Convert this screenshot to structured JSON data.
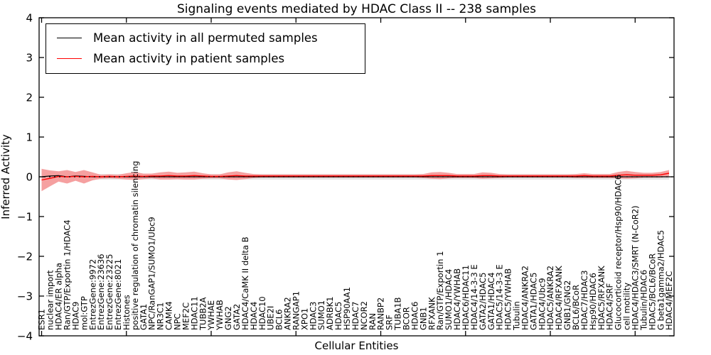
{
  "figure": {
    "title": "Signaling events mediated by HDAC Class II -- 238 samples",
    "xlabel": "Cellular Entities",
    "ylabel": "Inferred Activity"
  },
  "legend": {
    "position": "upper-left",
    "items": [
      {
        "label": "Mean activity in all permuted samples",
        "color": "#000000"
      },
      {
        "label": "Mean activity in patient samples",
        "color": "#ff0000"
      }
    ]
  },
  "colors": {
    "patient_line": "#ff0000",
    "patient_band": "#f5a0a0",
    "permuted_line": "#000000",
    "permuted_band": "#e3e3e3",
    "axis": "#000000",
    "background": "#ffffff"
  },
  "chart_data": {
    "type": "line",
    "title": "Signaling events mediated by HDAC Class II -- 238 samples",
    "xlabel": "Cellular Entities",
    "ylabel": "Inferred Activity",
    "ylim": [
      -4,
      4
    ],
    "yticks": [
      4,
      3,
      2,
      1,
      0,
      -1,
      -2,
      -3,
      -4
    ],
    "x_major_tick_every": 10,
    "grid": false,
    "zero_line": "dotted-black",
    "legend_position": "upper-left",
    "categories": [
      "ESR1",
      "nuclear import",
      "HDAC4/ER alpha",
      "Ran/GTP/Exportin 1/HDAC4",
      "HDAC9",
      "mol:GTP",
      "EntrezGene:9972",
      "EntrezGene:23636",
      "EntrezGene:23225",
      "EntrezGene:8021",
      "Histones",
      "positive regulation of chromatin silencing",
      "GATA1",
      "NPC/RanGAP1/SUMO1/Ubc9",
      "NR3C1",
      "CAMK4",
      "NPC",
      "MEF2C",
      "HDAC11",
      "TUBB2A",
      "YWHAE",
      "YWHAB",
      "GNG2",
      "GATA2",
      "HDAC4/CaMK II delta B",
      "HDAC4",
      "HDAC10",
      "UBE2I",
      "BCL6",
      "ANKRA2",
      "RANGAP1",
      "XPO1",
      "HDAC3",
      "SUMO1",
      "ADRBK1",
      "HDAC5",
      "HSP90AA1",
      "HDAC7",
      "NCOR2",
      "RAN",
      "RANBP2",
      "SRF",
      "TUBA1B",
      "BCOR",
      "HDAC6",
      "GNB1",
      "RFXANK",
      "Ran/GTP/Exportin 1",
      "SUMO1/HDAC4",
      "HDAC4/YWHAB",
      "HDAC6/HDAC11",
      "HDAC4/14-3-3 E",
      "GATA2/HDAC5",
      "GATA1/HDAC4",
      "HDAC5/14-3-3 E",
      "HDAC5/YWHAB",
      "Tubulin",
      "HDAC4/ANKRA2",
      "GATA1/HDAC5",
      "HDAC4/Ubc9",
      "HDAC5/ANKRA2",
      "HDAC4/RFXANK",
      "GNB1/GNG2",
      "BCL6/BCoR",
      "HDAC7/HDAC3",
      "Hsp90/HDAC6",
      "HDAC5/RFXANK",
      "HDAC4/SRF",
      "Glucocorticoid receptor/Hsp90/HDAC6",
      "cell motility",
      "HDAC4/HDAC3/SMRT (N-CoR2)",
      "Tubulin/HDAC6",
      "HDAC5/BCL6/BCoR",
      "G beta1gamma2/HDAC5",
      "HDAC4/MEF2C"
    ],
    "series": [
      {
        "name": "Mean activity in all permuted samples",
        "color": "#000000",
        "band_color": "#e3e3e3",
        "values": [
          0.0,
          0.02,
          0.03,
          0.0,
          0.02,
          0.01,
          0.0,
          0.0,
          0.0,
          0.0,
          0.0,
          0.0,
          0.0,
          0.0,
          0.0,
          0.0,
          0.0,
          0.0,
          0.0,
          0.0,
          0.0,
          0.0,
          0.0,
          0.0,
          0.0,
          0.0,
          0.0,
          0.0,
          0.0,
          0.0,
          0.0,
          0.0,
          0.0,
          0.0,
          0.0,
          0.0,
          0.0,
          0.0,
          0.0,
          0.0,
          0.0,
          0.0,
          0.0,
          0.0,
          0.0,
          0.0,
          0.0,
          0.0,
          0.0,
          0.0,
          0.0,
          0.0,
          0.0,
          0.0,
          0.0,
          0.0,
          0.0,
          0.0,
          0.0,
          0.0,
          0.0,
          0.0,
          0.0,
          0.0,
          0.0,
          0.0,
          0.0,
          0.0,
          0.0,
          0.0,
          0.0,
          0.0,
          0.0,
          0.0,
          0.0
        ],
        "band_half": [
          0.12,
          0.11,
          0.1,
          0.09,
          0.08,
          0.07,
          0.07,
          0.07,
          0.07,
          0.07,
          0.07,
          0.07,
          0.07,
          0.07,
          0.07,
          0.07,
          0.07,
          0.07,
          0.07,
          0.07,
          0.07,
          0.07,
          0.07,
          0.07,
          0.07,
          0.07,
          0.07,
          0.07,
          0.07,
          0.07,
          0.07,
          0.07,
          0.07,
          0.07,
          0.07,
          0.07,
          0.07,
          0.07,
          0.07,
          0.07,
          0.07,
          0.07,
          0.07,
          0.07,
          0.07,
          0.07,
          0.07,
          0.07,
          0.07,
          0.07,
          0.07,
          0.07,
          0.07,
          0.07,
          0.07,
          0.07,
          0.07,
          0.07,
          0.07,
          0.07,
          0.07,
          0.07,
          0.07,
          0.07,
          0.07,
          0.07,
          0.07,
          0.07,
          0.07,
          0.07,
          0.07,
          0.07,
          0.07,
          0.07,
          0.07
        ]
      },
      {
        "name": "Mean activity in patient samples",
        "color": "#ff0000",
        "band_color": "#f5a0a0",
        "values": [
          -0.08,
          -0.04,
          0.01,
          0.0,
          0.01,
          0.0,
          0.01,
          0.0,
          0.01,
          0.0,
          0.01,
          0.02,
          0.01,
          0.02,
          0.02,
          0.03,
          0.02,
          0.02,
          0.03,
          0.02,
          0.01,
          0.01,
          0.02,
          0.03,
          0.02,
          0.02,
          0.02,
          0.02,
          0.02,
          0.02,
          0.02,
          0.02,
          0.02,
          0.02,
          0.02,
          0.02,
          0.02,
          0.02,
          0.02,
          0.02,
          0.02,
          0.02,
          0.02,
          0.02,
          0.02,
          0.02,
          0.03,
          0.03,
          0.03,
          0.02,
          0.02,
          0.02,
          0.03,
          0.03,
          0.02,
          0.02,
          0.02,
          0.02,
          0.02,
          0.02,
          0.02,
          0.02,
          0.02,
          0.02,
          0.03,
          0.02,
          0.02,
          0.02,
          0.04,
          0.05,
          0.04,
          0.04,
          0.04,
          0.05,
          0.09
        ],
        "band_half": [
          0.28,
          0.2,
          0.13,
          0.17,
          0.11,
          0.17,
          0.1,
          0.05,
          0.05,
          0.05,
          0.08,
          0.1,
          0.07,
          0.06,
          0.09,
          0.1,
          0.08,
          0.09,
          0.1,
          0.07,
          0.05,
          0.05,
          0.09,
          0.11,
          0.08,
          0.05,
          0.04,
          0.04,
          0.04,
          0.04,
          0.04,
          0.04,
          0.04,
          0.04,
          0.04,
          0.04,
          0.04,
          0.04,
          0.04,
          0.04,
          0.04,
          0.04,
          0.04,
          0.04,
          0.04,
          0.05,
          0.08,
          0.09,
          0.07,
          0.05,
          0.05,
          0.05,
          0.08,
          0.07,
          0.05,
          0.04,
          0.04,
          0.04,
          0.04,
          0.04,
          0.04,
          0.04,
          0.04,
          0.05,
          0.06,
          0.05,
          0.05,
          0.05,
          0.08,
          0.1,
          0.08,
          0.06,
          0.06,
          0.07,
          0.08
        ]
      }
    ]
  }
}
